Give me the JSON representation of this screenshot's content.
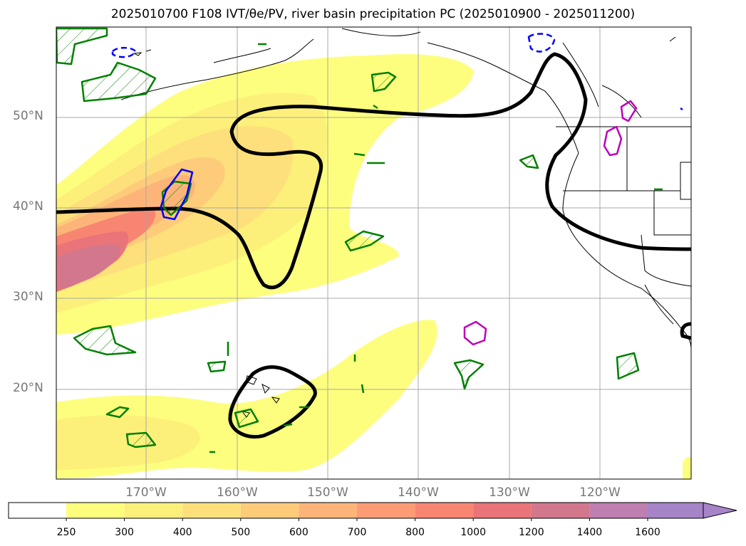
{
  "title": "2025010700 F108 IVT/θe/PV, river basin precipitation PC (2025010900 - 2025011200)",
  "lat_labels": [
    "50°N",
    "40°N",
    "30°N",
    "20°N"
  ],
  "lon_labels": [
    "170°W",
    "160°W",
    "150°W",
    "140°W",
    "130°W",
    "120°W"
  ],
  "colorbar": {
    "levels": [
      "250",
      "300",
      "400",
      "500",
      "600",
      "700",
      "800",
      "1000",
      "1200",
      "1400",
      "1600"
    ],
    "colors": [
      "#ffffff",
      "#fefe7e",
      "#fdf07a",
      "#fde07b",
      "#fdcb7a",
      "#fdb478",
      "#fd9b75",
      "#f88572",
      "#e97479",
      "#d3778d",
      "#bf7fb0",
      "#a684c8"
    ],
    "extend": "max"
  },
  "contour_colors": {
    "pv": "#000000",
    "theta_e_warm": "#0000ff",
    "theta_e_cold": "#bb00bb",
    "precip": "#008000"
  }
}
